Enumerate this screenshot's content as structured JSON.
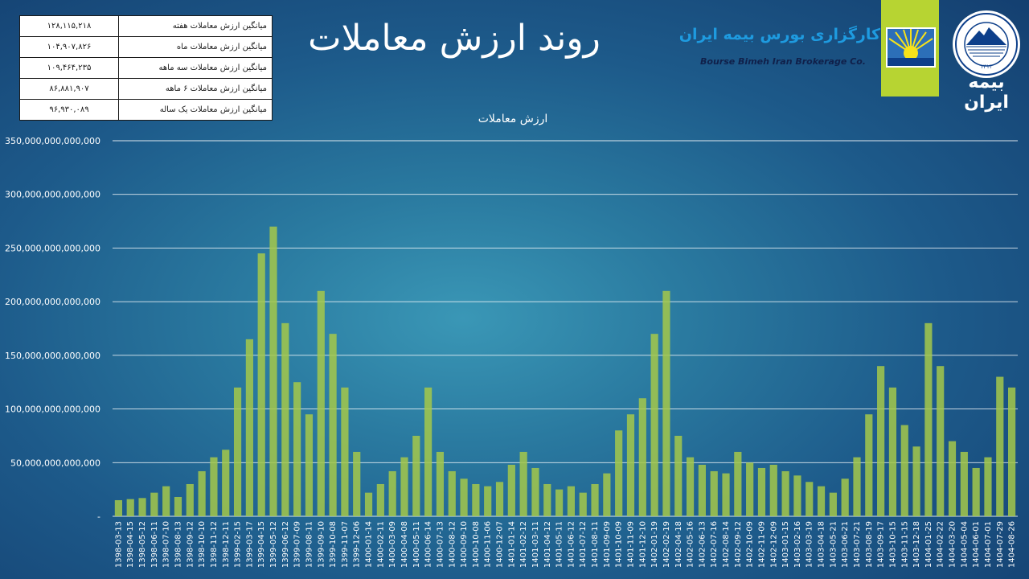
{
  "title": "روند ارزش معاملات",
  "summary": [
    {
      "value": "۱۲۸,۱۱۵,۲۱۸",
      "label": "میانگین ارزش معاملات هفته"
    },
    {
      "value": "۱۰۴,۹۰۷,۸۲۶",
      "label": "میانگین ارزش معاملات ماه"
    },
    {
      "value": "۱۰۹,۴۶۴,۲۳۵",
      "label": "میانگین ارزش معاملات سه ماهه"
    },
    {
      "value": "۸۶,۸۸۱,۹۰۷",
      "label": "میانگین ارزش معاملات ۶ ماهه"
    },
    {
      "value": "۹۶,۹۳۰,۰۸۹",
      "label": "میانگین ارزش معاملات یک ساله"
    }
  ],
  "broker": {
    "name_fa": "کارگزاری بورس بیمه ایران",
    "name_en": "Bourse Bimeh Iran Brokerage Co."
  },
  "insurer": {
    "name_fa": "بیمه ایران",
    "seal_year": "۱۳۱۴"
  },
  "colors": {
    "bar": "#a4c84a",
    "grid": "#ffffff",
    "band": "#b7d432",
    "broker_blue": "#1e9be0"
  },
  "icons": [
    "sunrise-emblem-icon",
    "mountain-seal-icon"
  ],
  "chart_data": {
    "type": "bar",
    "title": "ارزش معاملات",
    "xlabel": "",
    "ylabel": "",
    "ylim": [
      0,
      350000000000000
    ],
    "yticks": [
      0,
      50000000000000,
      100000000000000,
      150000000000000,
      200000000000000,
      250000000000000,
      300000000000000,
      350000000000000
    ],
    "ytick_labels": [
      "-",
      "50,000,000,000,000",
      "100,000,000,000,000",
      "150,000,000,000,000",
      "200,000,000,000,000",
      "250,000,000,000,000",
      "300,000,000,000,000",
      "350,000,000,000,000"
    ],
    "grid": true,
    "legend": "none",
    "categories": [
      "1398-03-13",
      "1398-04-15",
      "1398-05-12",
      "1398-06-11",
      "1398-07-10",
      "1398-08-13",
      "1398-09-12",
      "1398-10-10",
      "1398-11-12",
      "1398-12-11",
      "1399-02-15",
      "1399-03-17",
      "1399-04-15",
      "1399-05-12",
      "1399-06-12",
      "1399-07-09",
      "1399-08-11",
      "1399-09-10",
      "1399-10-08",
      "1399-11-07",
      "1399-12-06",
      "1400-01-14",
      "1400-02-11",
      "1400-03-09",
      "1400-04-08",
      "1400-05-11",
      "1400-06-14",
      "1400-07-13",
      "1400-08-12",
      "1400-09-10",
      "1400-10-08",
      "1400-11-06",
      "1400-12-07",
      "1401-01-14",
      "1401-02-12",
      "1401-03-11",
      "1401-04-12",
      "1401-05-11",
      "1401-06-12",
      "1401-07-12",
      "1401-08-11",
      "1401-09-09",
      "1401-10-09",
      "1401-11-09",
      "1401-12-10",
      "1402-01-19",
      "1402-02-19",
      "1402-04-18",
      "1402-05-16",
      "1402-06-13",
      "1402-07-16",
      "1402-08-14",
      "1402-09-12",
      "1402-10-09",
      "1402-11-09",
      "1402-12-09",
      "1403-01-15",
      "1403-02-16",
      "1403-03-19",
      "1403-04-18",
      "1403-05-21",
      "1403-06-21",
      "1403-07-21",
      "1403-08-19",
      "1403-09-17",
      "1403-10-15",
      "1403-11-15",
      "1403-12-18",
      "1404-01-25",
      "1404-02-22",
      "1404-03-20",
      "1404-05-04",
      "1404-06-01",
      "1404-07-01",
      "1404-07-29",
      "1404-08-26"
    ],
    "values": [
      15000000000000,
      16000000000000,
      17000000000000,
      22000000000000,
      28000000000000,
      18000000000000,
      30000000000000,
      42000000000000,
      55000000000000,
      62000000000000,
      120000000000000,
      165000000000000,
      245000000000000,
      270000000000000,
      180000000000000,
      125000000000000,
      95000000000000,
      210000000000000,
      170000000000000,
      120000000000000,
      60000000000000,
      22000000000000,
      30000000000000,
      42000000000000,
      55000000000000,
      75000000000000,
      120000000000000,
      60000000000000,
      42000000000000,
      35000000000000,
      30000000000000,
      28000000000000,
      32000000000000,
      48000000000000,
      60000000000000,
      45000000000000,
      30000000000000,
      25000000000000,
      28000000000000,
      22000000000000,
      30000000000000,
      40000000000000,
      80000000000000,
      95000000000000,
      110000000000000,
      170000000000000,
      210000000000000,
      75000000000000,
      55000000000000,
      48000000000000,
      42000000000000,
      40000000000000,
      60000000000000,
      50000000000000,
      45000000000000,
      48000000000000,
      42000000000000,
      38000000000000,
      32000000000000,
      28000000000000,
      22000000000000,
      35000000000000,
      55000000000000,
      95000000000000,
      140000000000000,
      120000000000000,
      85000000000000,
      65000000000000,
      180000000000000,
      140000000000000,
      70000000000000,
      60000000000000,
      45000000000000,
      55000000000000,
      130000000000000,
      120000000000000
    ]
  }
}
